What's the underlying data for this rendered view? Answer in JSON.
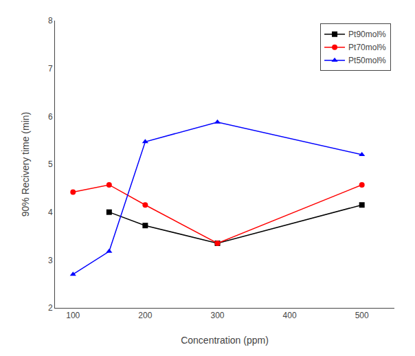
{
  "chart_data": {
    "type": "line",
    "x": [
      100,
      150,
      200,
      300,
      500
    ],
    "series": [
      {
        "name": "Pt90mol%",
        "color": "#000000",
        "marker": "square",
        "values": [
          null,
          4.0,
          3.72,
          3.35,
          4.15
        ]
      },
      {
        "name": "Pt70mol%",
        "color": "#ff0000",
        "marker": "circle",
        "values": [
          4.42,
          4.57,
          4.15,
          3.35,
          4.57
        ]
      },
      {
        "name": "Pt50mol%",
        "color": "#0000ff",
        "marker": "triangle",
        "values": [
          2.7,
          3.18,
          5.47,
          5.88,
          5.2
        ]
      }
    ],
    "xlabel": "Concentration (ppm)",
    "ylabel": "90% Recivery time (min)",
    "xlim": [
      75,
      545
    ],
    "ylim": [
      2,
      8
    ],
    "xticks": [
      100,
      200,
      300,
      400,
      500
    ],
    "yticks": [
      2,
      3,
      4,
      5,
      6,
      7,
      8
    ],
    "legend": "upper right",
    "grid": false
  }
}
